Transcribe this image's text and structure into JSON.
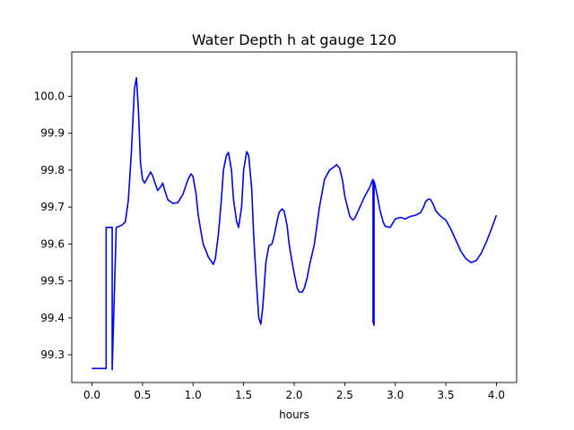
{
  "chart_data": {
    "type": "line",
    "title": "Water Depth h at gauge 120",
    "xlabel": "hours",
    "ylabel": "",
    "xlim": [
      -0.2,
      4.2
    ],
    "ylim": [
      99.225,
      100.12
    ],
    "x_ticks": [
      "0.0",
      "0.5",
      "1.0",
      "1.5",
      "2.0",
      "2.5",
      "3.0",
      "3.5",
      "4.0"
    ],
    "y_ticks": [
      "99.3",
      "99.4",
      "99.5",
      "99.6",
      "99.7",
      "99.8",
      "99.9",
      "100.0"
    ],
    "grid": false,
    "series": [
      {
        "color": "#0000ff",
        "x": [
          0.0,
          0.14,
          0.14,
          0.2,
          0.2,
          0.24,
          0.24,
          0.27,
          0.3,
          0.33,
          0.36,
          0.39,
          0.42,
          0.44,
          0.46,
          0.48,
          0.5,
          0.52,
          0.55,
          0.58,
          0.6,
          0.63,
          0.65,
          0.68,
          0.7,
          0.72,
          0.75,
          0.8,
          0.85,
          0.9,
          0.95,
          0.98,
          1.0,
          1.03,
          1.05,
          1.08,
          1.1,
          1.13,
          1.15,
          1.2,
          1.22,
          1.25,
          1.28,
          1.3,
          1.33,
          1.35,
          1.38,
          1.4,
          1.43,
          1.45,
          1.48,
          1.5,
          1.53,
          1.55,
          1.58,
          1.6,
          1.63,
          1.65,
          1.67,
          1.69,
          1.72,
          1.75,
          1.78,
          1.8,
          1.83,
          1.85,
          1.88,
          1.9,
          1.93,
          1.95,
          1.98,
          2.0,
          2.03,
          2.05,
          2.08,
          2.1,
          2.13,
          2.15,
          2.2,
          2.25,
          2.3,
          2.35,
          2.4,
          2.42,
          2.45,
          2.48,
          2.5,
          2.55,
          2.58,
          2.6,
          2.65,
          2.7,
          2.75,
          2.77,
          2.78,
          2.78,
          2.79,
          2.79,
          2.8,
          2.83,
          2.85,
          2.88,
          2.9,
          2.95,
          3.0,
          3.05,
          3.1,
          3.15,
          3.2,
          3.25,
          3.28,
          3.3,
          3.33,
          3.35,
          3.38,
          3.4,
          3.45,
          3.5,
          3.55,
          3.6,
          3.65,
          3.7,
          3.75,
          3.8,
          3.85,
          3.9,
          3.95,
          4.0
        ],
        "y": [
          99.263,
          99.263,
          99.645,
          99.645,
          99.26,
          99.645,
          99.645,
          99.648,
          99.652,
          99.66,
          99.72,
          99.85,
          100.02,
          100.05,
          99.96,
          99.82,
          99.775,
          99.765,
          99.78,
          99.795,
          99.785,
          99.76,
          99.745,
          99.755,
          99.765,
          99.745,
          99.72,
          99.71,
          99.712,
          99.735,
          99.775,
          99.79,
          99.782,
          99.735,
          99.68,
          99.63,
          99.6,
          99.58,
          99.565,
          99.545,
          99.56,
          99.625,
          99.72,
          99.8,
          99.84,
          99.848,
          99.8,
          99.72,
          99.662,
          99.645,
          99.7,
          99.8,
          99.85,
          99.84,
          99.75,
          99.62,
          99.48,
          99.4,
          99.383,
          99.43,
          99.55,
          99.595,
          99.6,
          99.62,
          99.66,
          99.685,
          99.695,
          99.69,
          99.65,
          99.6,
          99.55,
          99.52,
          99.48,
          99.47,
          99.47,
          99.48,
          99.51,
          99.54,
          99.6,
          99.7,
          99.775,
          99.8,
          99.81,
          99.815,
          99.805,
          99.77,
          99.73,
          99.675,
          99.665,
          99.67,
          99.7,
          99.73,
          99.755,
          99.77,
          99.775,
          99.39,
          99.38,
          99.77,
          99.76,
          99.72,
          99.69,
          99.66,
          99.648,
          99.645,
          99.668,
          99.672,
          99.668,
          99.675,
          99.678,
          99.685,
          99.7,
          99.715,
          99.722,
          99.72,
          99.705,
          99.69,
          99.675,
          99.665,
          99.64,
          99.61,
          99.58,
          99.56,
          99.55,
          99.555,
          99.575,
          99.605,
          99.64,
          99.678
        ]
      }
    ]
  }
}
